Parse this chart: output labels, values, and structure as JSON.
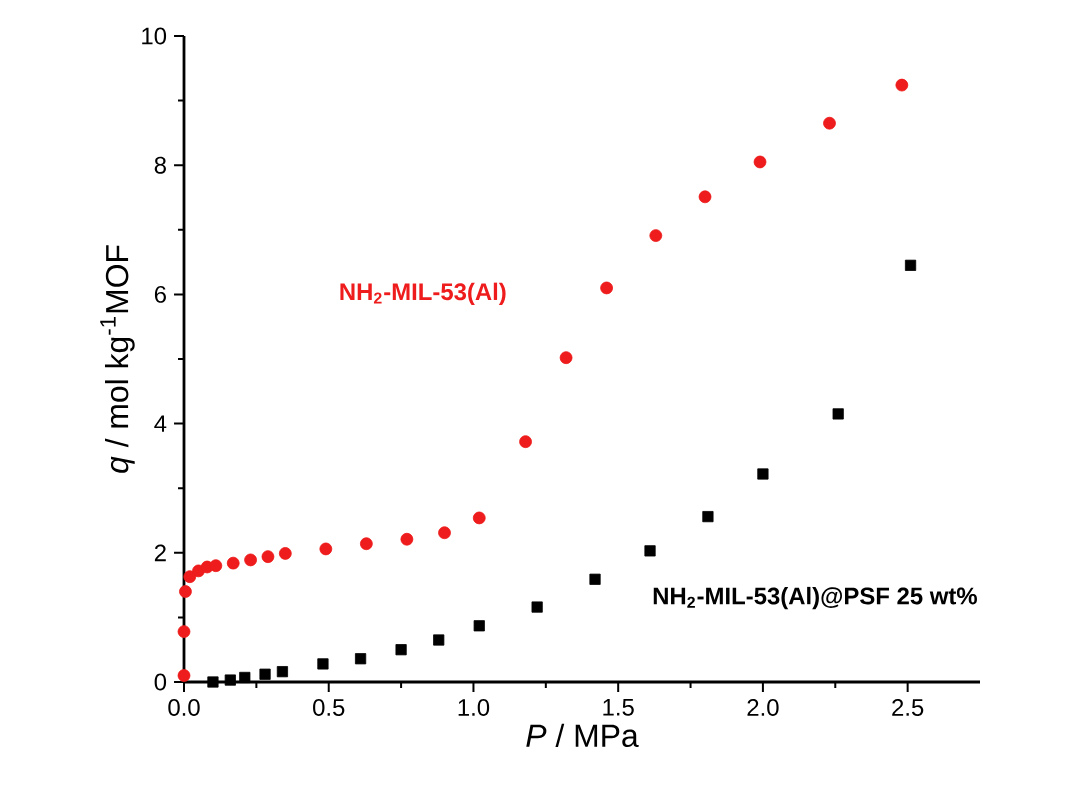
{
  "chart_data": {
    "type": "scatter",
    "xlabel": "*P* / MPa",
    "ylabel": "*q* / mol kg$^{-1}$MOF",
    "xlim": [
      0,
      2.75
    ],
    "xticks": [
      {
        "value": 0,
        "label": "0.0"
      },
      0.5,
      {
        "value": 1,
        "label": "1.0"
      },
      1.5,
      {
        "value": 2,
        "label": "2.0"
      },
      2.5
    ],
    "ylim": [
      0,
      10
    ],
    "yticks": [
      0,
      2,
      4,
      6,
      8,
      10
    ],
    "grid": false,
    "legend": false,
    "series": [
      {
        "name": "NH$_{2}$-MIL-53(Al)",
        "color": "#ee1c1c",
        "marker": "circle",
        "x": [
          0.0,
          0.0,
          0.005,
          0.02,
          0.05,
          0.08,
          0.11,
          0.17,
          0.23,
          0.29,
          0.35,
          0.49,
          0.63,
          0.77,
          0.9,
          1.02,
          1.18,
          1.32,
          1.46,
          1.63,
          1.8,
          1.99,
          2.23,
          2.48
        ],
        "values": [
          0.1,
          0.78,
          1.4,
          1.63,
          1.72,
          1.78,
          1.8,
          1.84,
          1.89,
          1.94,
          1.99,
          2.06,
          2.14,
          2.21,
          2.31,
          2.54,
          3.72,
          5.02,
          6.1,
          6.91,
          7.51,
          8.05,
          8.65,
          9.24
        ]
      },
      {
        "name": "NH$_{2}$-MIL-53(Al)@PSF 25 wt%",
        "color": "#000000",
        "marker": "square",
        "x": [
          0.1,
          0.16,
          0.21,
          0.28,
          0.34,
          0.48,
          0.61,
          0.75,
          0.88,
          1.02,
          1.22,
          1.42,
          1.61,
          1.81,
          2.0,
          2.26,
          2.51
        ],
        "values": [
          0.0,
          0.03,
          0.07,
          0.12,
          0.16,
          0.28,
          0.36,
          0.5,
          0.65,
          0.87,
          1.16,
          1.59,
          2.03,
          2.56,
          3.22,
          4.15,
          6.45
        ]
      }
    ]
  }
}
